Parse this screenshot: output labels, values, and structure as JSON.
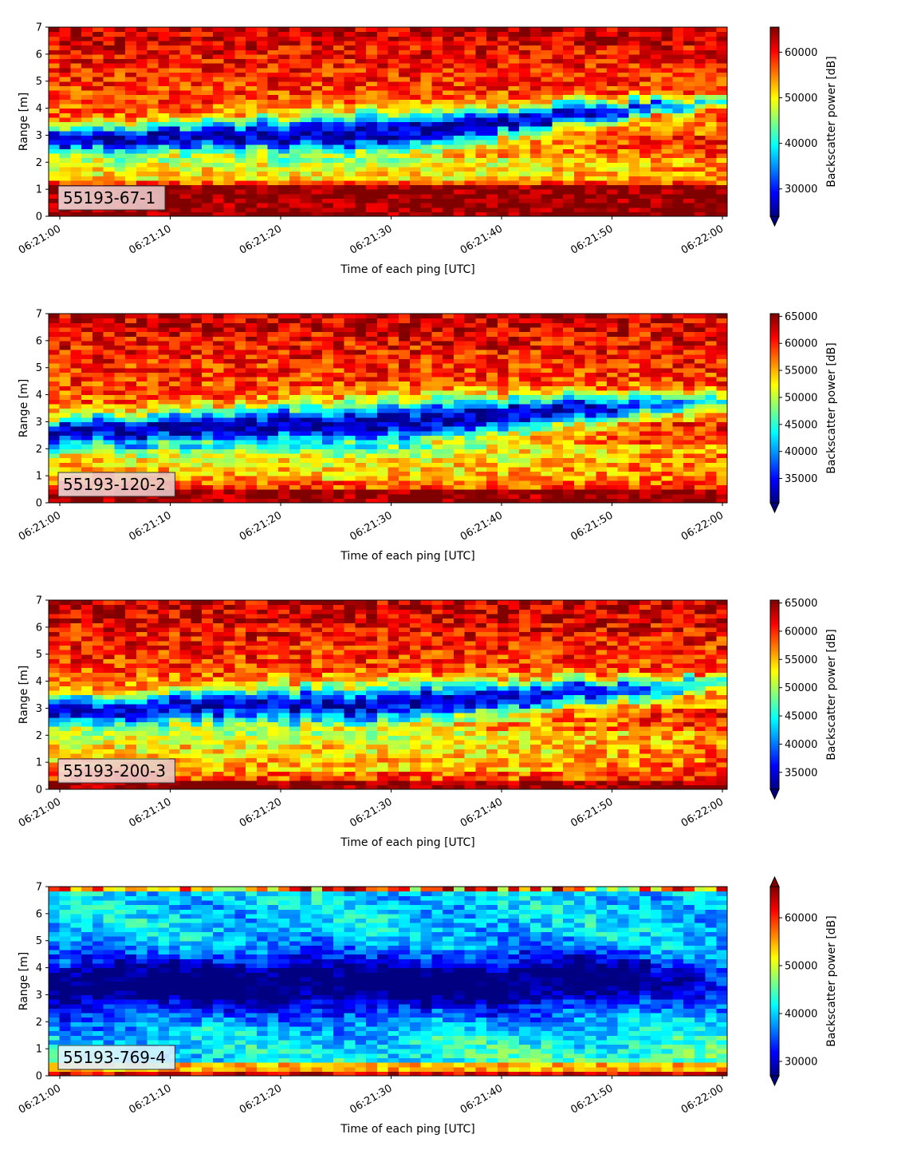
{
  "chart_data": [
    {
      "type": "heatmap",
      "label": "55193-67-1",
      "xlabel": "Time of each ping [UTC]",
      "ylabel": "Range [m]",
      "colorbar_label": "Backscatter power [dB]",
      "x_ticks": [
        "06:21:00",
        "06:21:10",
        "06:21:20",
        "06:21:30",
        "06:21:40",
        "06:21:50",
        "06:22:00"
      ],
      "y_ticks": [
        0,
        1,
        2,
        3,
        4,
        5,
        6,
        7
      ],
      "ylim": [
        0,
        7
      ],
      "clim": [
        24000,
        65500
      ],
      "colorbar_ticks": [
        30000,
        40000,
        50000,
        60000
      ],
      "colorbar_extend": "min",
      "colormap": "jet",
      "pattern": {
        "band_center_start": 2.85,
        "band_center_mid": 3.1,
        "band_center_end": 4.3,
        "band_width_start": 1.1,
        "band_width_mid": 1.7,
        "band_width_end": 0.5,
        "band_strength": 0.95,
        "band_fade_end": 0.6,
        "bottom_edge": 1.1,
        "bottom_strength": 1.0,
        "top_edge": 6.4,
        "noise": 0.12
      }
    },
    {
      "type": "heatmap",
      "label": "55193-120-2",
      "xlabel": "Time of each ping [UTC]",
      "ylabel": "Range [m]",
      "colorbar_label": "Backscatter power [dB]",
      "x_ticks": [
        "06:21:00",
        "06:21:10",
        "06:21:20",
        "06:21:30",
        "06:21:40",
        "06:21:50",
        "06:22:00"
      ],
      "y_ticks": [
        0,
        1,
        2,
        3,
        4,
        5,
        6,
        7
      ],
      "ylim": [
        0,
        7
      ],
      "clim": [
        30500,
        65500
      ],
      "colorbar_ticks": [
        35000,
        40000,
        45000,
        50000,
        55000,
        60000,
        65000
      ],
      "colorbar_extend": "min",
      "colormap": "jet",
      "pattern": {
        "band_center_start": 2.6,
        "band_center_mid": 3.0,
        "band_center_end": 3.8,
        "band_width_start": 1.2,
        "band_width_mid": 1.9,
        "band_width_end": 0.8,
        "band_strength": 0.95,
        "band_fade_end": 0.5,
        "bottom_edge": 0.55,
        "bottom_strength": 1.0,
        "top_edge": 6.3,
        "noise": 0.13
      }
    },
    {
      "type": "heatmap",
      "label": "55193-200-3",
      "xlabel": "Time of each ping [UTC]",
      "ylabel": "Range [m]",
      "colorbar_label": "Backscatter power [dB]",
      "x_ticks": [
        "06:21:00",
        "06:21:10",
        "06:21:20",
        "06:21:30",
        "06:21:40",
        "06:21:50",
        "06:22:00"
      ],
      "y_ticks": [
        0,
        1,
        2,
        3,
        4,
        5,
        6,
        7
      ],
      "ylim": [
        0,
        7
      ],
      "clim": [
        32000,
        65500
      ],
      "colorbar_ticks": [
        35000,
        40000,
        45000,
        50000,
        55000,
        60000,
        65000
      ],
      "colorbar_extend": "min",
      "colormap": "jet",
      "pattern": {
        "band_center_start": 2.9,
        "band_center_mid": 3.2,
        "band_center_end": 3.9,
        "band_width_start": 1.3,
        "band_width_mid": 1.7,
        "band_width_end": 0.7,
        "band_strength": 0.9,
        "band_fade_end": 0.55,
        "bottom_edge": 0.4,
        "bottom_strength": 1.0,
        "top_edge": 6.2,
        "noise": 0.13
      }
    },
    {
      "type": "heatmap",
      "label": "55193-769-4",
      "xlabel": "Time of each ping [UTC]",
      "ylabel": "Range [m]",
      "colorbar_label": "Backscatter power [dB]",
      "x_ticks": [
        "06:21:00",
        "06:21:10",
        "06:21:20",
        "06:21:30",
        "06:21:40",
        "06:21:50",
        "06:22:00"
      ],
      "y_ticks": [
        0,
        1,
        2,
        3,
        4,
        5,
        6,
        7
      ],
      "ylim": [
        0,
        7
      ],
      "clim": [
        27000,
        66500
      ],
      "colorbar_ticks": [
        30000,
        40000,
        50000,
        60000
      ],
      "colorbar_extend": "both",
      "colormap": "jet",
      "pattern": {
        "band_center_start": 3.3,
        "band_center_mid": 3.4,
        "band_center_end": 3.6,
        "band_width_start": 2.4,
        "band_width_mid": 2.5,
        "band_width_end": 2.2,
        "band_strength": 0.55,
        "band_fade_end": 0.25,
        "bottom_edge": 0.25,
        "bottom_strength": 0.9,
        "top_edge": 6.8,
        "noise": 0.1,
        "base_level": 0.33
      }
    }
  ]
}
